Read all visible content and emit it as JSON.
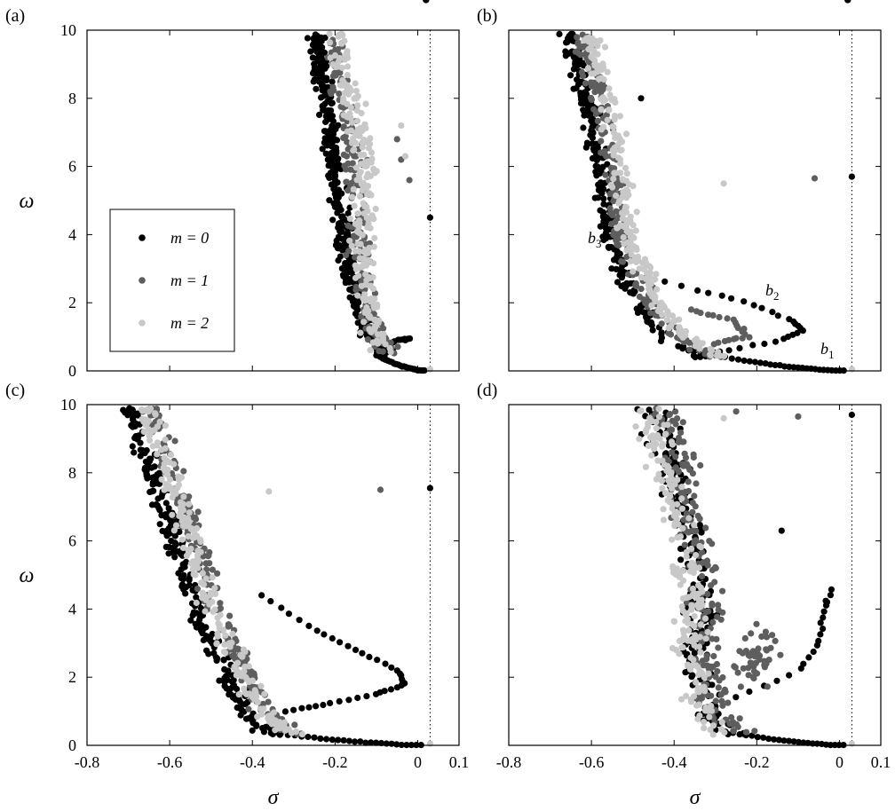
{
  "figure": {
    "panel_labels": [
      "(a)",
      "(b)",
      "(c)",
      "(d)"
    ],
    "xlabel": "σ",
    "ylabel": "ω",
    "xticks": [
      "-0.8",
      "-0.6",
      "-0.4",
      "-0.2",
      "0",
      "0.1"
    ],
    "yticks": [
      "0",
      "2",
      "4",
      "6",
      "8",
      "10"
    ]
  },
  "legend": {
    "entries": [
      {
        "label": "m = 0",
        "color": "#000000"
      },
      {
        "label": "m = 1",
        "color": "#5e5e5e"
      },
      {
        "label": "m = 2",
        "color": "#c8c8c8"
      }
    ]
  },
  "annotations_b": [
    "b1",
    "b2",
    "b3"
  ],
  "chart_data": [
    {
      "type": "scatter",
      "panel": "(a)",
      "xlabel": "",
      "ylabel": "ω",
      "xlim": [
        -0.8,
        0.1
      ],
      "ylim": [
        0,
        10
      ],
      "grid": false,
      "legend_placement": "left",
      "reference_line_x": 0.03,
      "series": [
        {
          "name": "m = 0",
          "color": "#000000",
          "points": [
            [
              0.03,
              4.5
            ],
            [
              -0.01,
              0.05
            ],
            [
              -0.03,
              0.9
            ],
            [
              -0.06,
              0.6
            ],
            [
              -0.08,
              0.4
            ]
          ]
        },
        {
          "name": "m = 1",
          "color": "#5e5e5e",
          "points": [
            [
              -0.05,
              6.8
            ],
            [
              -0.02,
              5.6
            ],
            [
              -0.04,
              6.2
            ]
          ]
        },
        {
          "name": "m = 2",
          "color": "#c8c8c8",
          "points": [
            [
              -0.04,
              7.2
            ],
            [
              -0.03,
              6.3
            ],
            [
              0.03,
              0.05
            ]
          ]
        }
      ]
    },
    {
      "type": "scatter",
      "panel": "(b)",
      "xlabel": "",
      "ylabel": "",
      "xlim": [
        -0.8,
        0.1
      ],
      "ylim": [
        0,
        10
      ],
      "grid": false,
      "reference_line_x": 0.03,
      "series": [
        {
          "name": "m = 0",
          "color": "#000000",
          "points": [
            [
              0.03,
              5.7
            ],
            [
              -0.48,
              8.0
            ]
          ]
        },
        {
          "name": "m = 1",
          "color": "#5e5e5e",
          "points": [
            [
              -0.06,
              5.65
            ]
          ]
        },
        {
          "name": "m = 2",
          "color": "#c8c8c8",
          "points": [
            [
              -0.28,
              5.5
            ],
            [
              0.03,
              0.05
            ]
          ]
        }
      ]
    },
    {
      "type": "scatter",
      "panel": "(c)",
      "xlabel": "σ",
      "ylabel": "ω",
      "xlim": [
        -0.8,
        0.1
      ],
      "ylim": [
        0,
        10
      ],
      "grid": false,
      "reference_line_x": 0.03,
      "series": [
        {
          "name": "m = 0",
          "color": "#000000",
          "points": [
            [
              0.03,
              7.55
            ],
            [
              -0.69,
              9.85
            ]
          ]
        },
        {
          "name": "m = 1",
          "color": "#5e5e5e",
          "points": [
            [
              -0.09,
              7.5
            ]
          ]
        },
        {
          "name": "m = 2",
          "color": "#c8c8c8",
          "points": [
            [
              -0.36,
              7.45
            ],
            [
              0.03,
              0.05
            ]
          ]
        }
      ]
    },
    {
      "type": "scatter",
      "panel": "(d)",
      "xlabel": "σ",
      "ylabel": "",
      "xlim": [
        -0.8,
        0.1
      ],
      "ylim": [
        0,
        10
      ],
      "grid": false,
      "reference_line_x": 0.03,
      "series": [
        {
          "name": "m = 0",
          "color": "#000000",
          "points": [
            [
              0.03,
              9.7
            ],
            [
              -0.03,
              4.2
            ],
            [
              -0.14,
              6.3
            ]
          ]
        },
        {
          "name": "m = 1",
          "color": "#5e5e5e",
          "points": [
            [
              -0.1,
              9.65
            ],
            [
              -0.25,
              9.8
            ]
          ]
        },
        {
          "name": "m = 2",
          "color": "#c8c8c8",
          "points": [
            [
              -0.28,
              9.6
            ],
            [
              0.03,
              0.05
            ]
          ]
        }
      ]
    }
  ]
}
